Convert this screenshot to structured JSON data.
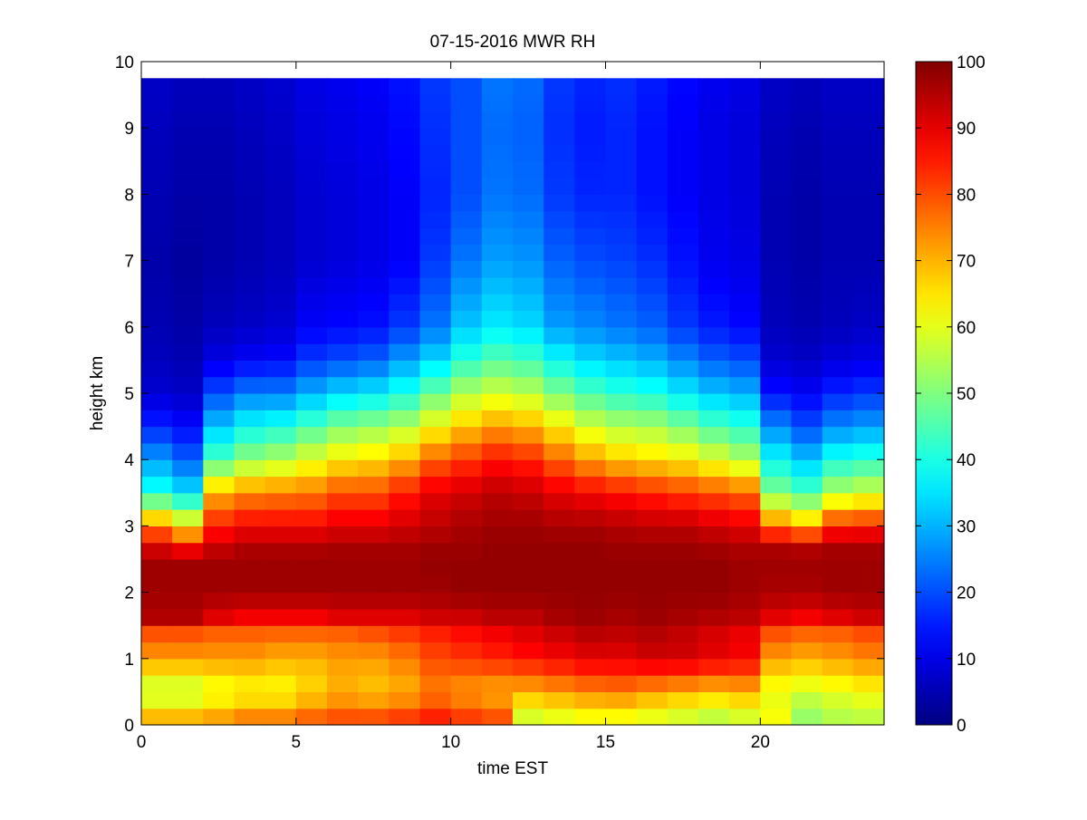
{
  "chart_data": {
    "type": "heatmap",
    "title": "07-15-2016 MWR RH",
    "xlabel": "time EST",
    "ylabel": "height km",
    "xlim": [
      0,
      24
    ],
    "ylim": [
      0,
      10
    ],
    "x_ticks": [
      0,
      5,
      10,
      15,
      20
    ],
    "y_ticks": [
      0,
      1,
      2,
      3,
      4,
      5,
      6,
      7,
      8,
      9,
      10
    ],
    "colorbar": {
      "colormap": "jet",
      "min": 0,
      "max": 100,
      "ticks": [
        0,
        10,
        20,
        30,
        40,
        50,
        60,
        70,
        80,
        90,
        100
      ]
    },
    "time_hours": [
      0.5,
      1.5,
      2.5,
      3.5,
      4.5,
      5.5,
      6.5,
      7.5,
      8.5,
      9.5,
      10.5,
      11.5,
      12.5,
      13.5,
      14.5,
      15.5,
      16.5,
      17.5,
      18.5,
      19.5,
      20.5,
      21.5,
      22.5,
      23.5
    ],
    "profile_heights_km": [
      0,
      0.1,
      0.5,
      1.0,
      1.5,
      1.6,
      2.0,
      2.5,
      2.7,
      3.0,
      3.5,
      4.0,
      4.5,
      5.0,
      5.5,
      6.0,
      7.0,
      8.0,
      9.0,
      9.75
    ],
    "rh_percent": [
      [
        82,
        70,
        55,
        72,
        82,
        95,
        97,
        97,
        90,
        75,
        40,
        28,
        16,
        8,
        6,
        5,
        4,
        5,
        6,
        7
      ],
      [
        82,
        70,
        55,
        72,
        82,
        95,
        97,
        97,
        85,
        65,
        35,
        22,
        13,
        7,
        5,
        4,
        3,
        4,
        5,
        6
      ],
      [
        80,
        72,
        60,
        72,
        80,
        90,
        97,
        97,
        92,
        85,
        70,
        45,
        32,
        20,
        10,
        6,
        4,
        4,
        5,
        6
      ],
      [
        82,
        75,
        62,
        72,
        80,
        88,
        97,
        97,
        95,
        88,
        74,
        52,
        38,
        25,
        12,
        7,
        5,
        5,
        6,
        7
      ],
      [
        80,
        75,
        62,
        70,
        80,
        88,
        97,
        97,
        95,
        88,
        75,
        55,
        40,
        25,
        13,
        8,
        6,
        6,
        7,
        8
      ],
      [
        84,
        78,
        66,
        70,
        80,
        88,
        97,
        97,
        95,
        88,
        76,
        60,
        45,
        30,
        18,
        12,
        8,
        8,
        9,
        10
      ],
      [
        86,
        80,
        70,
        72,
        80,
        90,
        97,
        97,
        96,
        90,
        80,
        64,
        50,
        34,
        20,
        13,
        9,
        9,
        10,
        11
      ],
      [
        86,
        80,
        68,
        72,
        82,
        90,
        97,
        97,
        96,
        90,
        80,
        66,
        52,
        36,
        22,
        14,
        10,
        10,
        11,
        12
      ],
      [
        88,
        82,
        70,
        75,
        84,
        90,
        97,
        97,
        96,
        92,
        85,
        70,
        55,
        40,
        28,
        18,
        12,
        12,
        13,
        14
      ],
      [
        90,
        85,
        75,
        80,
        86,
        92,
        97,
        98,
        97,
        94,
        90,
        78,
        62,
        48,
        34,
        24,
        18,
        16,
        17,
        18
      ],
      [
        88,
        82,
        72,
        82,
        88,
        92,
        98,
        98,
        97,
        96,
        92,
        82,
        68,
        55,
        42,
        32,
        24,
        20,
        20,
        20
      ],
      [
        86,
        80,
        70,
        84,
        90,
        94,
        98,
        98,
        98,
        97,
        94,
        86,
        72,
        58,
        46,
        36,
        28,
        24,
        23,
        24
      ],
      [
        85,
        58,
        70,
        86,
        92,
        94,
        98,
        98,
        98,
        97,
        93,
        84,
        70,
        56,
        44,
        34,
        27,
        23,
        22,
        23
      ],
      [
        84,
        60,
        72,
        88,
        94,
        96,
        98,
        98,
        98,
        96,
        90,
        78,
        64,
        50,
        38,
        28,
        22,
        18,
        17,
        18
      ],
      [
        82,
        62,
        74,
        90,
        96,
        97,
        98,
        98,
        98,
        96,
        88,
        72,
        58,
        45,
        34,
        26,
        20,
        16,
        15,
        16
      ],
      [
        84,
        62,
        75,
        90,
        95,
        96,
        98,
        98,
        97,
        95,
        86,
        68,
        55,
        42,
        32,
        24,
        19,
        16,
        16,
        17
      ],
      [
        84,
        60,
        72,
        92,
        96,
        97,
        98,
        98,
        97,
        94,
        84,
        66,
        54,
        40,
        30,
        22,
        17,
        14,
        14,
        15
      ],
      [
        82,
        58,
        70,
        92,
        94,
        96,
        98,
        98,
        97,
        94,
        82,
        64,
        50,
        36,
        26,
        18,
        14,
        12,
        12,
        13
      ],
      [
        82,
        56,
        68,
        90,
        92,
        95,
        98,
        98,
        96,
        92,
        80,
        60,
        45,
        32,
        22,
        15,
        11,
        10,
        10,
        11
      ],
      [
        84,
        58,
        70,
        88,
        90,
        94,
        97,
        97,
        95,
        90,
        78,
        55,
        42,
        30,
        20,
        13,
        10,
        9,
        9,
        10
      ],
      [
        50,
        62,
        60,
        72,
        82,
        90,
        96,
        97,
        95,
        76,
        50,
        38,
        26,
        14,
        8,
        6,
        5,
        5,
        6,
        7
      ],
      [
        45,
        52,
        58,
        70,
        80,
        88,
        96,
        97,
        94,
        70,
        45,
        32,
        20,
        12,
        7,
        5,
        4,
        4,
        5,
        6
      ],
      [
        48,
        55,
        60,
        72,
        80,
        90,
        97,
        97,
        96,
        84,
        55,
        40,
        26,
        16,
        9,
        6,
        5,
        5,
        6,
        7
      ],
      [
        50,
        56,
        62,
        74,
        82,
        92,
        97,
        97,
        96,
        85,
        58,
        42,
        28,
        18,
        10,
        7,
        5,
        5,
        6,
        7
      ]
    ]
  }
}
